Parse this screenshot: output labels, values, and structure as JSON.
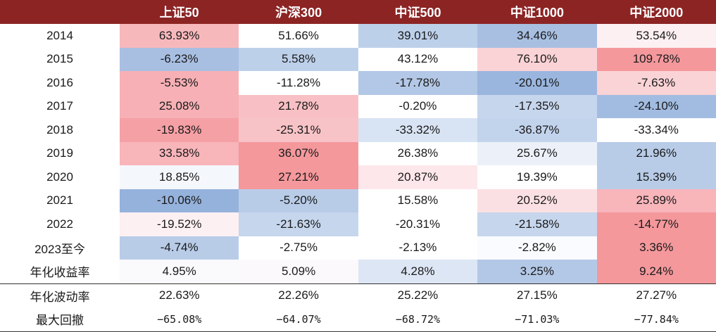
{
  "header": {
    "corner": "",
    "columns": [
      "上证50",
      "沪深300",
      "中证500",
      "中证1000",
      "中证2000"
    ]
  },
  "rows": [
    {
      "label": "2014",
      "values": [
        "63.93%",
        "51.66%",
        "39.01%",
        "34.46%",
        "53.54%"
      ],
      "colors": [
        "#f7b8bc",
        "#ffffff",
        "#bdd0ea",
        "#a8bfe2",
        "#fdf0f2"
      ]
    },
    {
      "label": "2015",
      "values": [
        "-6.23%",
        "5.58%",
        "43.12%",
        "76.10%",
        "109.78%"
      ],
      "colors": [
        "#a8bfe2",
        "#bdd0ea",
        "#ffffff",
        "#fad3d6",
        "#f4989c"
      ]
    },
    {
      "label": "2016",
      "values": [
        "-5.53%",
        "-11.28%",
        "-17.78%",
        "-20.01%",
        "-7.63%"
      ],
      "colors": [
        "#f7b0b5",
        "#ffffff",
        "#b3c8e6",
        "#9ab6de",
        "#fad3d6"
      ]
    },
    {
      "label": "2017",
      "values": [
        "25.08%",
        "21.78%",
        "-0.20%",
        "-17.35%",
        "-24.10%"
      ],
      "colors": [
        "#f7b0b5",
        "#f8c0c4",
        "#ffffff",
        "#c6d6ed",
        "#a2bce1"
      ]
    },
    {
      "label": "2018",
      "values": [
        "-19.83%",
        "-25.31%",
        "-33.32%",
        "-36.87%",
        "-33.34%"
      ],
      "colors": [
        "#f5a0a5",
        "#f8c3c7",
        "#d8e3f3",
        "#c2d3ec",
        "#ffffff"
      ]
    },
    {
      "label": "2019",
      "values": [
        "33.58%",
        "36.07%",
        "26.38%",
        "25.67%",
        "21.96%"
      ],
      "colors": [
        "#f8b5ba",
        "#f4989c",
        "#ffffff",
        "#ecf1f9",
        "#b8cce8"
      ]
    },
    {
      "label": "2020",
      "values": [
        "18.85%",
        "27.21%",
        "20.87%",
        "19.39%",
        "15.39%"
      ],
      "colors": [
        "#f4f7fc",
        "#f4989c",
        "#fde7ea",
        "#ffffff",
        "#b8cce8"
      ]
    },
    {
      "label": "2021",
      "values": [
        "-10.06%",
        "-5.20%",
        "15.58%",
        "20.52%",
        "25.89%"
      ],
      "colors": [
        "#95b2dc",
        "#b8cce8",
        "#ffffff",
        "#fbe0e3",
        "#f8b5ba"
      ]
    },
    {
      "label": "2022",
      "values": [
        "-19.52%",
        "-21.63%",
        "-20.31%",
        "-21.58%",
        "-14.77%"
      ],
      "colors": [
        "#fdf0f2",
        "#c6d6ed",
        "#ffffff",
        "#c6d6ed",
        "#f4989c"
      ]
    },
    {
      "label": "2023至今",
      "values": [
        "-4.74%",
        "-2.75%",
        "-2.13%",
        "-2.82%",
        "3.36%"
      ],
      "colors": [
        "#b8cce8",
        "#ffffff",
        "#ffffff",
        "#fafbfe",
        "#f4989c"
      ]
    },
    {
      "label": "年化收益率",
      "values": [
        "4.95%",
        "5.09%",
        "4.28%",
        "3.25%",
        "9.24%"
      ],
      "colors": [
        "#faf9fc",
        "#fbf9fc",
        "#dde6f4",
        "#b3c8e6",
        "#f4989c"
      ]
    }
  ],
  "summary_rows": [
    {
      "label": "年化波动率",
      "values": [
        "22.63%",
        "22.26%",
        "25.22%",
        "27.15%",
        "27.27%"
      ]
    },
    {
      "label": "最大回撤",
      "values": [
        "−65.08%",
        "−64.07%",
        "−68.72%",
        "−71.03%",
        "−77.84%"
      ]
    }
  ],
  "colors": {
    "header_bg": "#8c2424",
    "header_text": "#ffffff",
    "rule": "#333333"
  }
}
